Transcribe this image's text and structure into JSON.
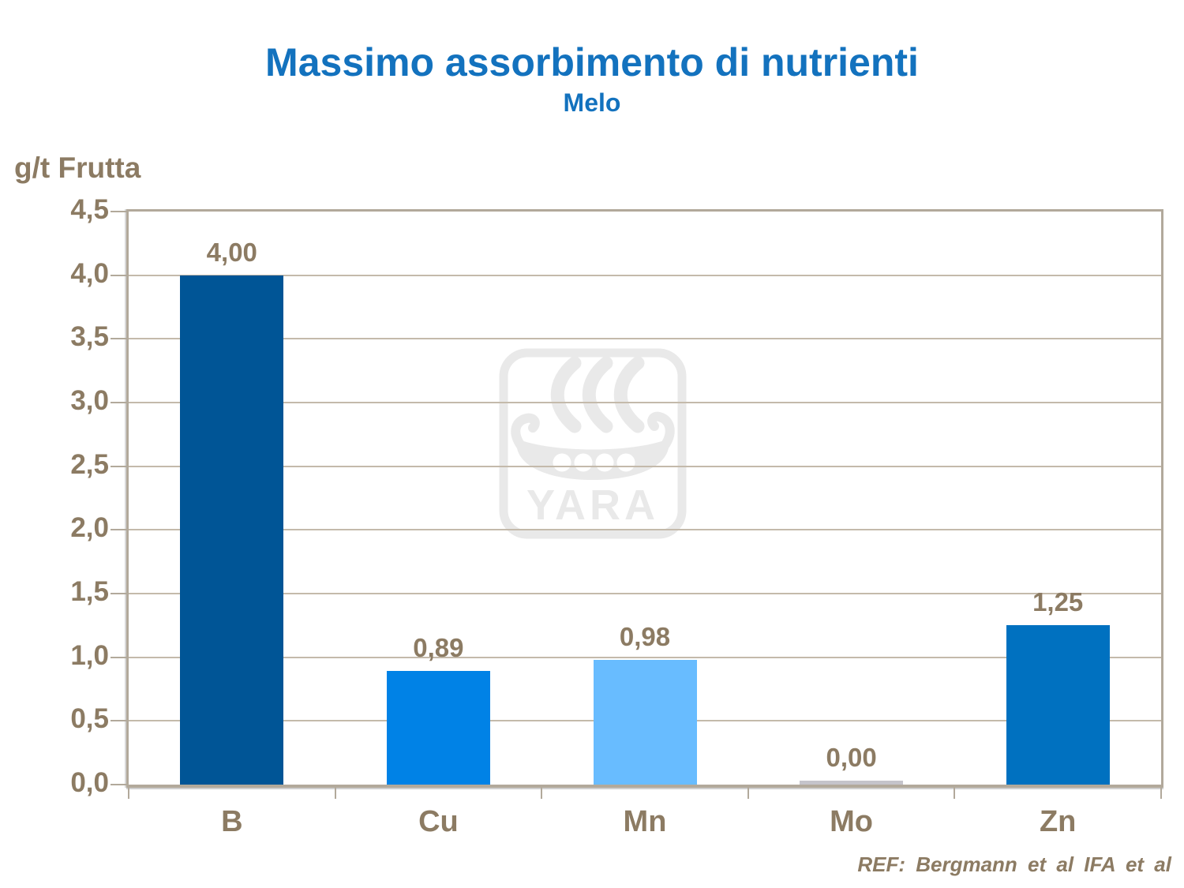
{
  "footer": {
    "ref_text": "REF: Bergmann et al IFA et al"
  },
  "watermark": {
    "text": "YARA"
  },
  "colors": {
    "title_blue": "#1372BE",
    "label_brown": "#8C7B63",
    "frame_tan": "#B2A99B",
    "gridline_tan": "#C4BAAB",
    "watermark_gray": "#E9E9E9",
    "bar_b": "#005596",
    "bar_cu": "#0082E6",
    "bar_mn": "#68BCFF",
    "bar_mo_zero": "#C5C4CB",
    "bar_zn": "#0071C0"
  },
  "chart_data": {
    "type": "bar",
    "title": "Massimo assorbimento di nutrienti",
    "subtitle": "Melo",
    "ylabel": "g/t Frutta",
    "xlabel": "",
    "categories": [
      "B",
      "Cu",
      "Mn",
      "Mo",
      "Zn"
    ],
    "values": [
      4.0,
      0.89,
      0.98,
      0.0,
      1.25
    ],
    "value_labels": [
      "4,00",
      "0,89",
      "0,98",
      "0,00",
      "1,25"
    ],
    "bar_colors": [
      "#005596",
      "#0082E6",
      "#68BCFF",
      "#C5C4CB",
      "#0071C0"
    ],
    "ylim": [
      0,
      4.5
    ],
    "ytick_step": 0.5,
    "ytick_labels": [
      "0,0",
      "0,5",
      "1,0",
      "1,5",
      "2,0",
      "2,5",
      "3,0",
      "3,5",
      "4,0",
      "4,5"
    ],
    "grid": true,
    "legend": "none",
    "decimal_separator": ","
  }
}
